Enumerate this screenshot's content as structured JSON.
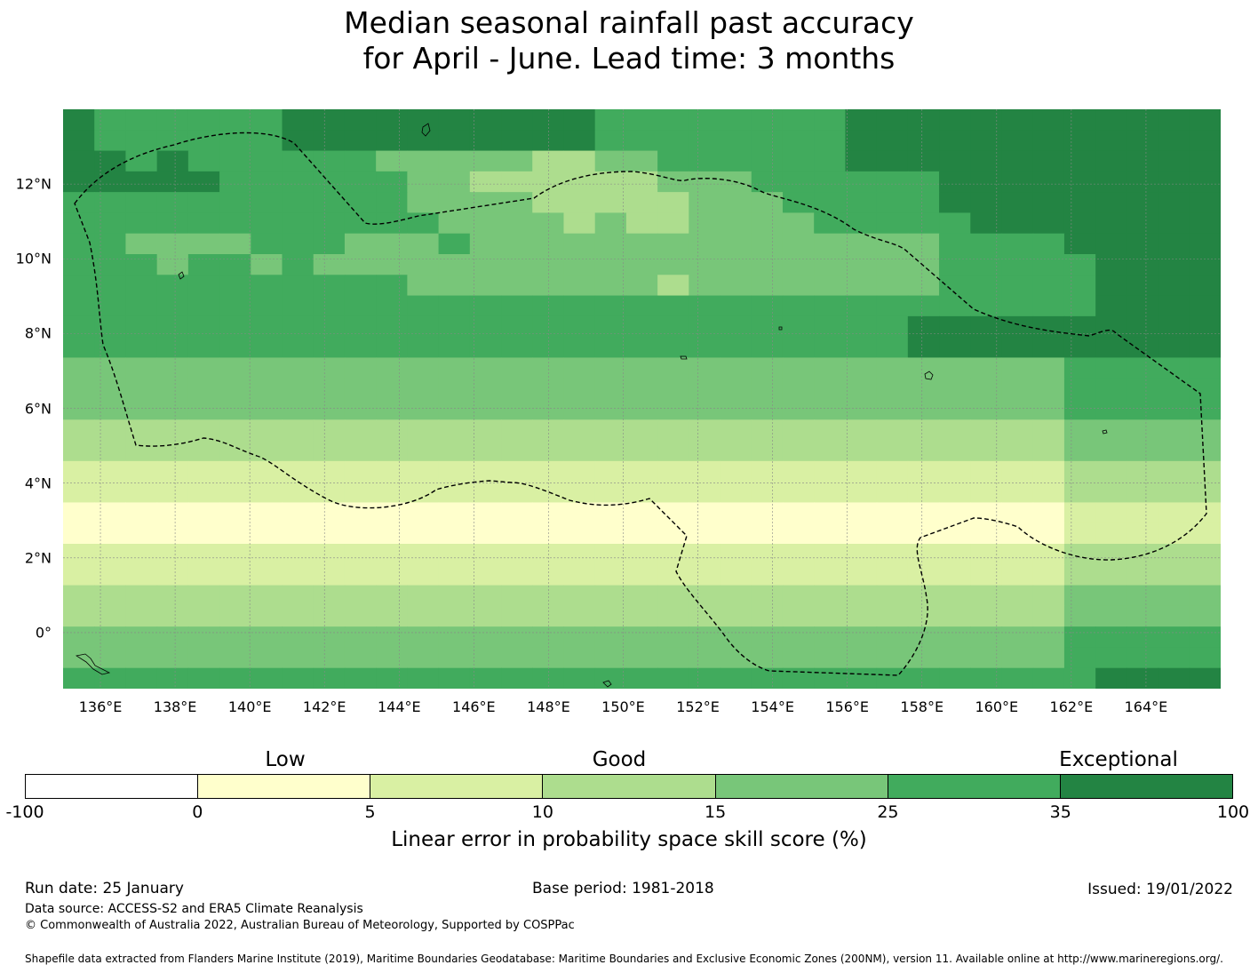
{
  "title": {
    "line1": "Median seasonal rainfall past accuracy",
    "line2": "for April - June. Lead time: 3 months"
  },
  "map": {
    "x_ticks": [
      "136°E",
      "138°E",
      "140°E",
      "142°E",
      "144°E",
      "146°E",
      "148°E",
      "150°E",
      "152°E",
      "154°E",
      "156°E",
      "158°E",
      "160°E",
      "162°E",
      "164°E"
    ],
    "y_ticks": [
      "12°N",
      "10°N",
      "8°N",
      "6°N",
      "4°N",
      "2°N",
      "0°"
    ],
    "x_range_deg": [
      135,
      166
    ],
    "y_range_deg": [
      -1.5,
      14
    ],
    "grid_columns": 37,
    "grid_rows": 28,
    "grid_classes": [
      "6555555666666666655555555666666666666",
      "6555555666666666655555555666666666666",
      "6656555555444443344555555666666666666",
      "6666655555544333333444555555666666666",
      "5555555555544443333344455555666666666",
      "5555555555554444343344445555566666666",
      "5544445554445444444444444444555566666",
      "5554554544444444444444444444555556666",
      "5555555555544444444344444444555556666",
      "5555555555555555555555555555555556666",
      "5555555555555555555555555556666666666",
      "5555555555555555555555555556666666666",
      "4444444444444444444444444444444455555",
      "4444444444444444444444444444444455555",
      "4444444444444444444444444444444455555",
      "3333333333333333333333333333333344444",
      "3333333333333333333333333333333344444",
      "2222222222222222222222222222222233333",
      "2222222222222222222222222222222233333",
      "1111111111111111111111111111111122222",
      "1111111111111111111111111111111122222",
      "2222222222222222222222222222222233333",
      "2222222222222222222222222222222233333",
      "3333333333333333333333333333333344444",
      "3333333333333333333333333333333344444",
      "4444444444444444444444444444444455555",
      "4444444444444444444444444444444455555",
      "5555555555555555555555555555555556666"
    ]
  },
  "colorbar": {
    "categories": [
      "Low",
      "Good",
      "Exceptional"
    ],
    "ticks": [
      "-100",
      "0",
      "5",
      "10",
      "15",
      "25",
      "35",
      "100"
    ],
    "colors": [
      "#ffffff",
      "#ffffcc",
      "#d9f0a3",
      "#addd8e",
      "#78c679",
      "#41ab5d",
      "#238443"
    ],
    "label": "Linear error in probability space skill score (%)"
  },
  "footer": {
    "run_date": "Run date: 25 January",
    "base_period": "Base period: 1981-2018",
    "issued": "Issued: 19/01/2022",
    "data_source": "Data source: ACCESS-S2 and ERA5 Climate Reanalysis",
    "copyright": "© Commonwealth of Australia 2022, Australian Bureau of Meteorology, Supported by COSPPac",
    "shapefile": "Shapefile data extracted from Flanders Marine Institute (2019), Maritime Boundaries Geodatabase: Maritime Boundaries and Exclusive Economic Zones (200NM), version 11. Available online at http://www.marineregions.org/."
  }
}
